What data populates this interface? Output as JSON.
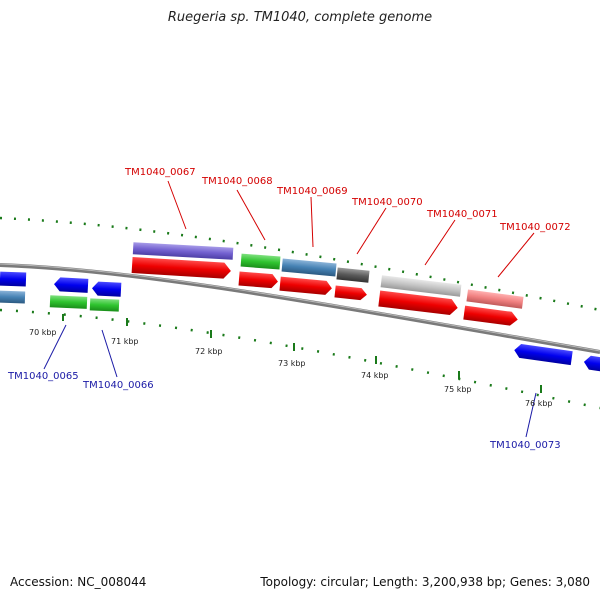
{
  "title": "Ruegeria sp. TM1040, complete genome",
  "footer": {
    "accession": "Accession: NC_008044",
    "summary": "Topology: circular; Length: 3,200,938 bp; Genes: 3,080"
  },
  "colors": {
    "forward_label": "#d40000",
    "reverse_label": "#1a1aa6",
    "tick": "#1a7a1a",
    "backbone": "#7a7a7a"
  },
  "ticks": [
    {
      "label": "70 kbp"
    },
    {
      "label": "71 kbp"
    },
    {
      "label": "72 kbp"
    },
    {
      "label": "73 kbp"
    },
    {
      "label": "74 kbp"
    },
    {
      "label": "75 kbp"
    },
    {
      "label": "76 kbp"
    }
  ],
  "genes_top": [
    {
      "label": "TM1040_0067",
      "color": "#d40000"
    },
    {
      "label": "TM1040_0068",
      "color": "#d40000"
    },
    {
      "label": "TM1040_0069",
      "color": "#d40000"
    },
    {
      "label": "TM1040_0070",
      "color": "#d40000"
    },
    {
      "label": "TM1040_0071",
      "color": "#d40000"
    },
    {
      "label": "TM1040_0072",
      "color": "#d40000"
    }
  ],
  "genes_bottom": [
    {
      "label": "TM1040_0065",
      "color": "#1a1aa6"
    },
    {
      "label": "TM1040_0066",
      "color": "#1a1aa6"
    },
    {
      "label": "TM1040_0073",
      "color": "#1a1aa6"
    }
  ]
}
